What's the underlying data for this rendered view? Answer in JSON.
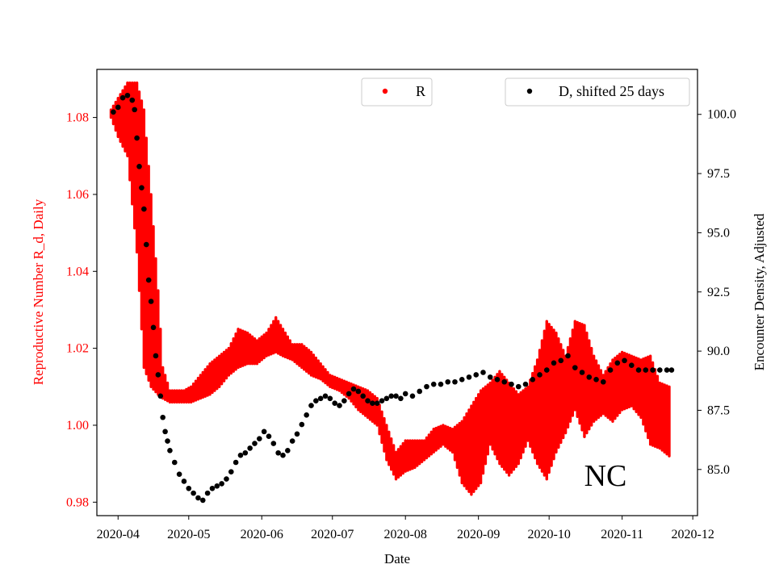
{
  "chart_data": {
    "type": "scatter",
    "xlabel": "Date",
    "ylabel_left": "Reproductive Number R_d, Daily",
    "ylabel_right": "Encounter Density, Adjusted",
    "x_ticks": [
      "2020-04",
      "2020-05",
      "2020-06",
      "2020-07",
      "2020-08",
      "2020-09",
      "2020-10",
      "2020-11",
      "2020-12"
    ],
    "x_range": [
      "2020-03-23",
      "2020-12-03"
    ],
    "y_left_ticks": [
      "0.98",
      "1.00",
      "1.02",
      "1.04",
      "1.06",
      "1.08"
    ],
    "y_left_range": [
      0.9765,
      1.0925
    ],
    "y_right_ticks": [
      "85.0",
      "87.5",
      "90.0",
      "92.5",
      "95.0",
      "97.5",
      "100.0"
    ],
    "y_right_range": [
      83.05,
      101.9
    ],
    "left_axis_color": "#ff0000",
    "right_axis_color": "#000000",
    "annotation": "NC",
    "legend": [
      {
        "label": "R",
        "color": "#ff0000",
        "position": "top-center"
      },
      {
        "label": "D, shifted 25 days",
        "color": "#000000",
        "position": "top-right"
      }
    ],
    "series": [
      {
        "name": "R",
        "axis": "left",
        "color": "#ff0000",
        "note": "band of daily R estimates (upper/lower envelope)",
        "x": [
          "2020-03-29",
          "2020-04-01",
          "2020-04-05",
          "2020-04-09",
          "2020-04-12",
          "2020-04-15",
          "2020-04-18",
          "2020-04-20",
          "2020-04-23",
          "2020-04-26",
          "2020-04-29",
          "2020-05-02",
          "2020-05-06",
          "2020-05-10",
          "2020-05-14",
          "2020-05-18",
          "2020-05-22",
          "2020-05-26",
          "2020-05-30",
          "2020-06-03",
          "2020-06-07",
          "2020-06-10",
          "2020-06-14",
          "2020-06-18",
          "2020-06-22",
          "2020-06-26",
          "2020-06-30",
          "2020-07-04",
          "2020-07-08",
          "2020-07-12",
          "2020-07-16",
          "2020-07-20",
          "2020-07-24",
          "2020-07-28",
          "2020-08-01",
          "2020-08-05",
          "2020-08-09",
          "2020-08-13",
          "2020-08-17",
          "2020-08-21",
          "2020-08-25",
          "2020-08-29",
          "2020-09-02",
          "2020-09-06",
          "2020-09-10",
          "2020-09-14",
          "2020-09-18",
          "2020-09-22",
          "2020-09-26",
          "2020-09-30",
          "2020-10-04",
          "2020-10-08",
          "2020-10-12",
          "2020-10-16",
          "2020-10-20",
          "2020-10-24",
          "2020-10-28",
          "2020-11-01",
          "2020-11-05",
          "2020-11-09",
          "2020-11-13",
          "2020-11-17",
          "2020-11-21"
        ],
        "upper": [
          1.082,
          1.085,
          1.089,
          1.089,
          1.082,
          1.06,
          1.035,
          1.015,
          1.009,
          1.009,
          1.009,
          1.01,
          1.013,
          1.016,
          1.018,
          1.02,
          1.025,
          1.024,
          1.022,
          1.024,
          1.028,
          1.025,
          1.021,
          1.021,
          1.019,
          1.016,
          1.013,
          1.012,
          1.011,
          1.01,
          1.009,
          1.007,
          1.0,
          0.993,
          0.996,
          0.996,
          0.996,
          0.999,
          1.0,
          0.999,
          1.001,
          1.005,
          1.009,
          1.011,
          1.014,
          1.011,
          1.008,
          1.01,
          1.017,
          1.027,
          1.024,
          1.018,
          1.027,
          1.026,
          1.018,
          1.013,
          1.017,
          1.019,
          1.018,
          1.017,
          1.018,
          1.011,
          1.01
        ],
        "lower": [
          1.08,
          1.075,
          1.07,
          1.045,
          1.015,
          1.01,
          1.008,
          1.007,
          1.006,
          1.006,
          1.006,
          1.006,
          1.007,
          1.008,
          1.01,
          1.013,
          1.015,
          1.016,
          1.016,
          1.018,
          1.019,
          1.018,
          1.017,
          1.015,
          1.013,
          1.012,
          1.01,
          1.009,
          1.007,
          1.004,
          1.002,
          1.0,
          0.991,
          0.986,
          0.988,
          0.989,
          0.991,
          0.993,
          0.995,
          0.993,
          0.985,
          0.982,
          0.985,
          0.995,
          0.99,
          0.987,
          0.99,
          0.996,
          0.99,
          0.986,
          0.993,
          0.998,
          1.004,
          0.997,
          1.001,
          1.003,
          1.001,
          1.004,
          1.005,
          1.002,
          0.995,
          0.994,
          0.992
        ]
      },
      {
        "name": "D, shifted 25 days",
        "axis": "right",
        "color": "#000000",
        "x": [
          "2020-03-30",
          "2020-04-01",
          "2020-04-03",
          "2020-04-05",
          "2020-04-07",
          "2020-04-08",
          "2020-04-09",
          "2020-04-10",
          "2020-04-11",
          "2020-04-12",
          "2020-04-13",
          "2020-04-14",
          "2020-04-15",
          "2020-04-16",
          "2020-04-17",
          "2020-04-18",
          "2020-04-19",
          "2020-04-20",
          "2020-04-21",
          "2020-04-22",
          "2020-04-23",
          "2020-04-25",
          "2020-04-27",
          "2020-04-29",
          "2020-05-01",
          "2020-05-03",
          "2020-05-05",
          "2020-05-07",
          "2020-05-09",
          "2020-05-11",
          "2020-05-13",
          "2020-05-15",
          "2020-05-17",
          "2020-05-19",
          "2020-05-21",
          "2020-05-23",
          "2020-05-25",
          "2020-05-27",
          "2020-05-29",
          "2020-05-31",
          "2020-06-02",
          "2020-06-04",
          "2020-06-06",
          "2020-06-08",
          "2020-06-10",
          "2020-06-12",
          "2020-06-14",
          "2020-06-16",
          "2020-06-18",
          "2020-06-20",
          "2020-06-22",
          "2020-06-24",
          "2020-06-26",
          "2020-06-28",
          "2020-06-30",
          "2020-07-02",
          "2020-07-04",
          "2020-07-06",
          "2020-07-08",
          "2020-07-10",
          "2020-07-12",
          "2020-07-14",
          "2020-07-16",
          "2020-07-18",
          "2020-07-20",
          "2020-07-22",
          "2020-07-24",
          "2020-07-26",
          "2020-07-28",
          "2020-07-30",
          "2020-08-01",
          "2020-08-04",
          "2020-08-07",
          "2020-08-10",
          "2020-08-13",
          "2020-08-16",
          "2020-08-19",
          "2020-08-22",
          "2020-08-25",
          "2020-08-28",
          "2020-08-31",
          "2020-09-03",
          "2020-09-06",
          "2020-09-09",
          "2020-09-12",
          "2020-09-15",
          "2020-09-18",
          "2020-09-21",
          "2020-09-24",
          "2020-09-27",
          "2020-09-30",
          "2020-10-03",
          "2020-10-06",
          "2020-10-09",
          "2020-10-12",
          "2020-10-15",
          "2020-10-18",
          "2020-10-21",
          "2020-10-24",
          "2020-10-27",
          "2020-10-30",
          "2020-11-02",
          "2020-11-05",
          "2020-11-08",
          "2020-11-11",
          "2020-11-14",
          "2020-11-17",
          "2020-11-20",
          "2020-11-22"
        ],
        "y": [
          100.1,
          100.3,
          100.7,
          100.8,
          100.6,
          100.2,
          99.0,
          97.8,
          96.9,
          96.0,
          94.5,
          93.0,
          92.1,
          91.0,
          89.8,
          89.0,
          88.1,
          87.2,
          86.6,
          86.2,
          85.8,
          85.3,
          84.8,
          84.5,
          84.2,
          84.0,
          83.8,
          83.7,
          84.0,
          84.2,
          84.3,
          84.4,
          84.6,
          84.9,
          85.3,
          85.6,
          85.7,
          85.9,
          86.1,
          86.3,
          86.6,
          86.4,
          86.1,
          85.7,
          85.6,
          85.8,
          86.2,
          86.5,
          86.9,
          87.3,
          87.7,
          87.9,
          88.0,
          88.1,
          88.0,
          87.8,
          87.7,
          87.9,
          88.2,
          88.4,
          88.3,
          88.1,
          87.9,
          87.8,
          87.8,
          87.9,
          88.0,
          88.1,
          88.1,
          88.0,
          88.2,
          88.1,
          88.3,
          88.5,
          88.6,
          88.6,
          88.7,
          88.7,
          88.8,
          88.9,
          89.0,
          89.1,
          88.9,
          88.8,
          88.7,
          88.6,
          88.5,
          88.6,
          88.8,
          89.0,
          89.2,
          89.5,
          89.6,
          89.8,
          89.3,
          89.1,
          88.9,
          88.8,
          88.7,
          89.2,
          89.5,
          89.6,
          89.4,
          89.2,
          89.2,
          89.2,
          89.2,
          89.2,
          89.2
        ]
      }
    ]
  }
}
